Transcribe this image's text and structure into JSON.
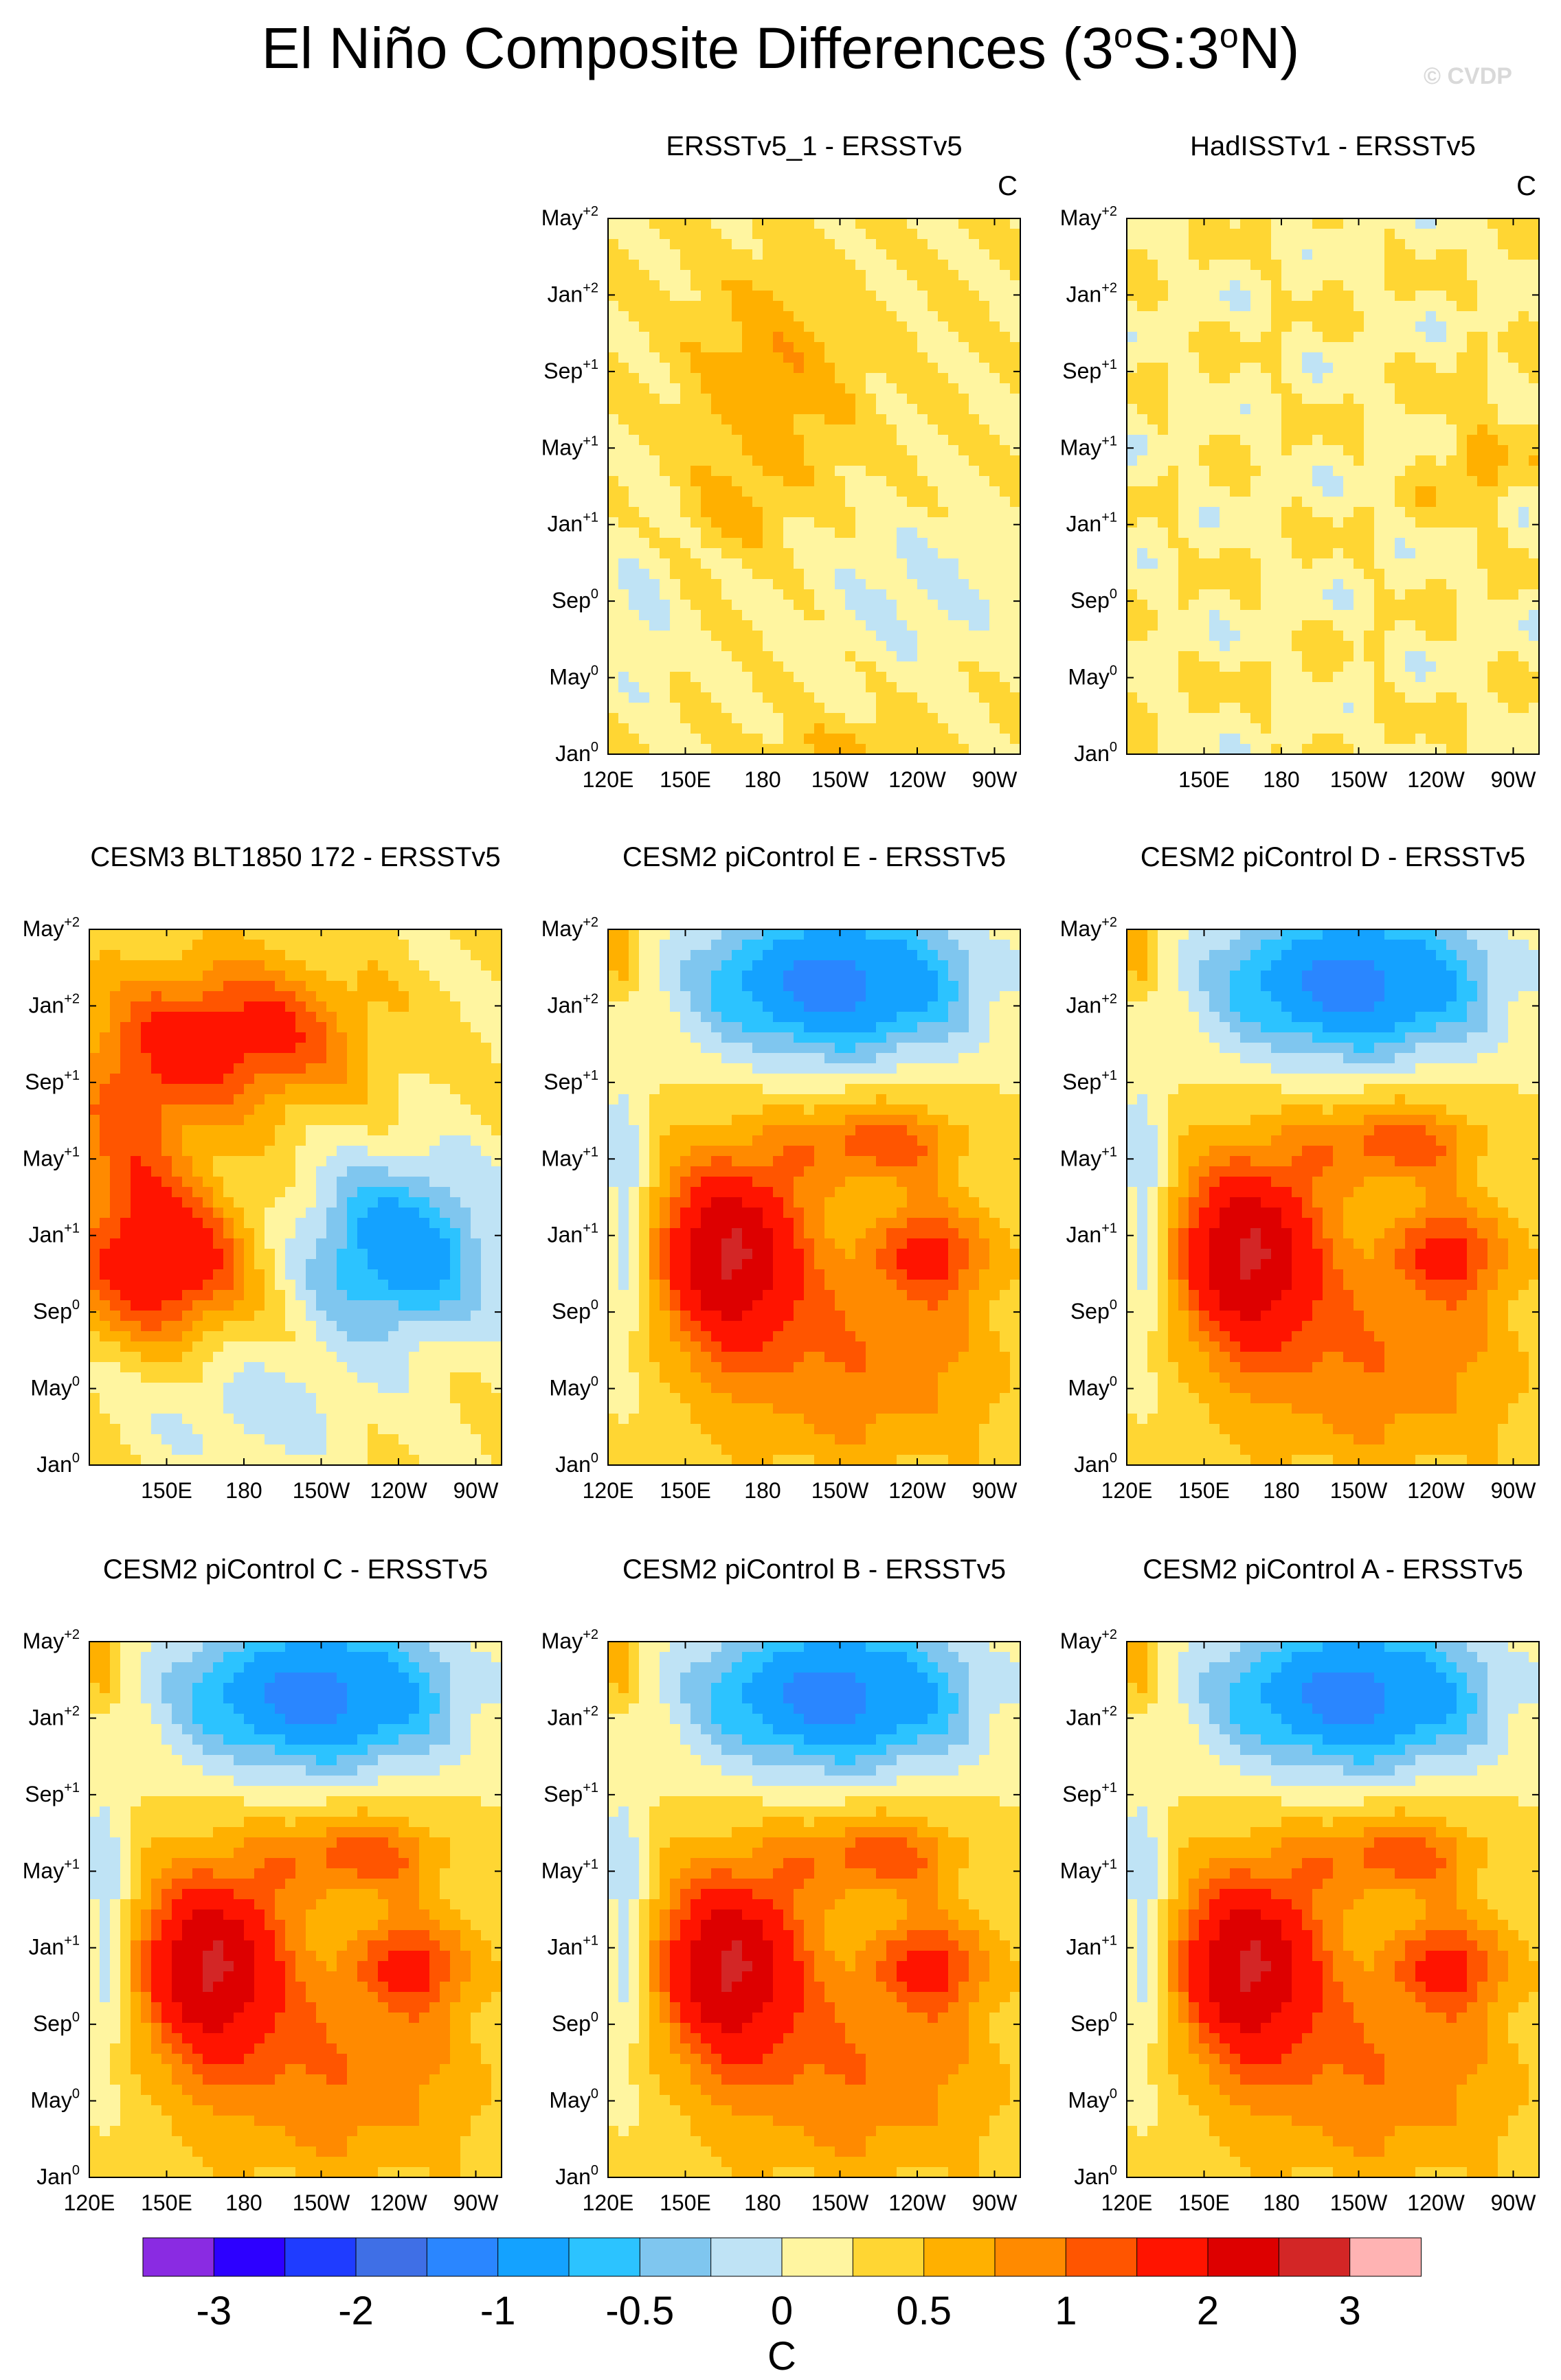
{
  "title_text": "El Niño Composite Differences (3",
  "title_deg1": "o",
  "title_mid": "S:3",
  "title_deg2": "o",
  "title_end": "N)",
  "credit": "© CVDP",
  "chart_data": {
    "type": "heatmap",
    "x_tick_labels_all": [
      "120E",
      "150E",
      "180",
      "150W",
      "120W",
      "90W"
    ],
    "y_tick_labels": [
      {
        "base": "Jan",
        "sup": "0"
      },
      {
        "base": "May",
        "sup": "0"
      },
      {
        "base": "Sep",
        "sup": "0"
      },
      {
        "base": "Jan",
        "sup": "+1"
      },
      {
        "base": "May",
        "sup": "+1"
      },
      {
        "base": "Sep",
        "sup": "+1"
      },
      {
        "base": "Jan",
        "sup": "+2"
      },
      {
        "base": "May",
        "sup": "+2"
      }
    ],
    "panels": [
      {
        "name": "ERSSTv5_1 - ERSSTv5",
        "unit": "C",
        "xticks": [
          "120E",
          "150E",
          "180",
          "150W",
          "120W",
          "90W"
        ],
        "pattern": "obs1"
      },
      {
        "name": "HadISSTv1 - ERSSTv5",
        "unit": "C",
        "xticks": [
          "150E",
          "180",
          "150W",
          "120W",
          "90W"
        ],
        "pattern": "obs2"
      },
      {
        "name": "CESM3 BLT1850 172 - ERSSTv5",
        "unit": "",
        "xticks": [
          "150E",
          "180",
          "150W",
          "120W",
          "90W"
        ],
        "pattern": "blt"
      },
      {
        "name": "CESM2 piControl E - ERSSTv5",
        "unit": "",
        "xticks": [
          "120E",
          "150E",
          "180",
          "150W",
          "120W",
          "90W"
        ],
        "pattern": "model"
      },
      {
        "name": "CESM2 piControl D - ERSSTv5",
        "unit": "",
        "xticks": [
          "120E",
          "150E",
          "180",
          "150W",
          "120W",
          "90W"
        ],
        "pattern": "model"
      },
      {
        "name": "CESM2 piControl C - ERSSTv5",
        "unit": "",
        "xticks": [
          "120E",
          "150E",
          "180",
          "150W",
          "120W",
          "90W"
        ],
        "pattern": "model"
      },
      {
        "name": "CESM2 piControl B - ERSSTv5",
        "unit": "",
        "xticks": [
          "120E",
          "150E",
          "180",
          "150W",
          "120W",
          "90W"
        ],
        "pattern": "model"
      },
      {
        "name": "CESM2 piControl A - ERSSTv5",
        "unit": "",
        "xticks": [
          "120E",
          "150E",
          "180",
          "150W",
          "120W",
          "90W"
        ],
        "pattern": "model"
      }
    ],
    "colorbar": {
      "colors": [
        "#8a2be2",
        "#2d00ff",
        "#1f3cff",
        "#3f6fe6",
        "#2a86ff",
        "#14a2ff",
        "#2cc3ff",
        "#7fc6ef",
        "#bfe3f5",
        "#fff5a0",
        "#ffd633",
        "#ffb000",
        "#ff8a00",
        "#ff5500",
        "#ff1400",
        "#dd0000",
        "#d32626",
        "#ffb3b3"
      ],
      "labels": [
        "-3",
        "-2",
        "-1",
        "-0.5",
        "0",
        "0.5",
        "1",
        "2",
        "3"
      ],
      "unit": "C"
    }
  }
}
